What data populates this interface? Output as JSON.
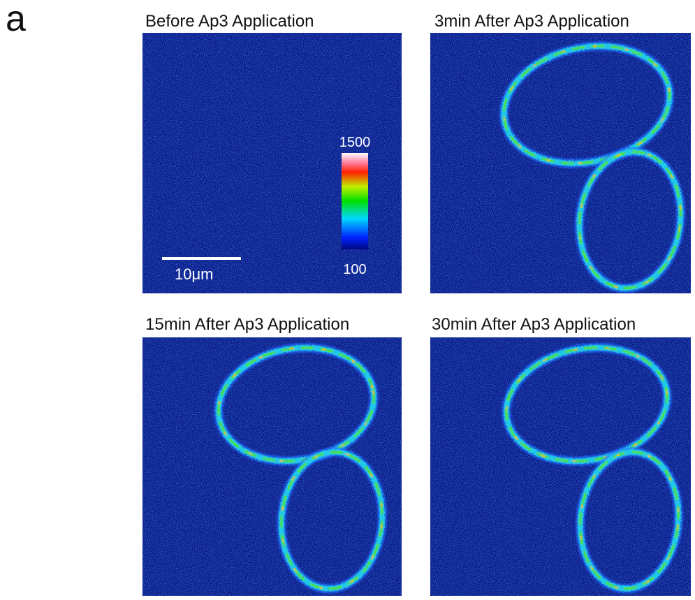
{
  "panel_label": "a",
  "panels": [
    {
      "title": "Before Ap3 Application"
    },
    {
      "title": "3min After Ap3 Application"
    },
    {
      "title": "15min After Ap3 Application"
    },
    {
      "title": "30min After Ap3 Application"
    }
  ],
  "colorbar": {
    "max_label": "1500",
    "min_label": "100"
  },
  "scale_bar": {
    "label": "10μm"
  }
}
